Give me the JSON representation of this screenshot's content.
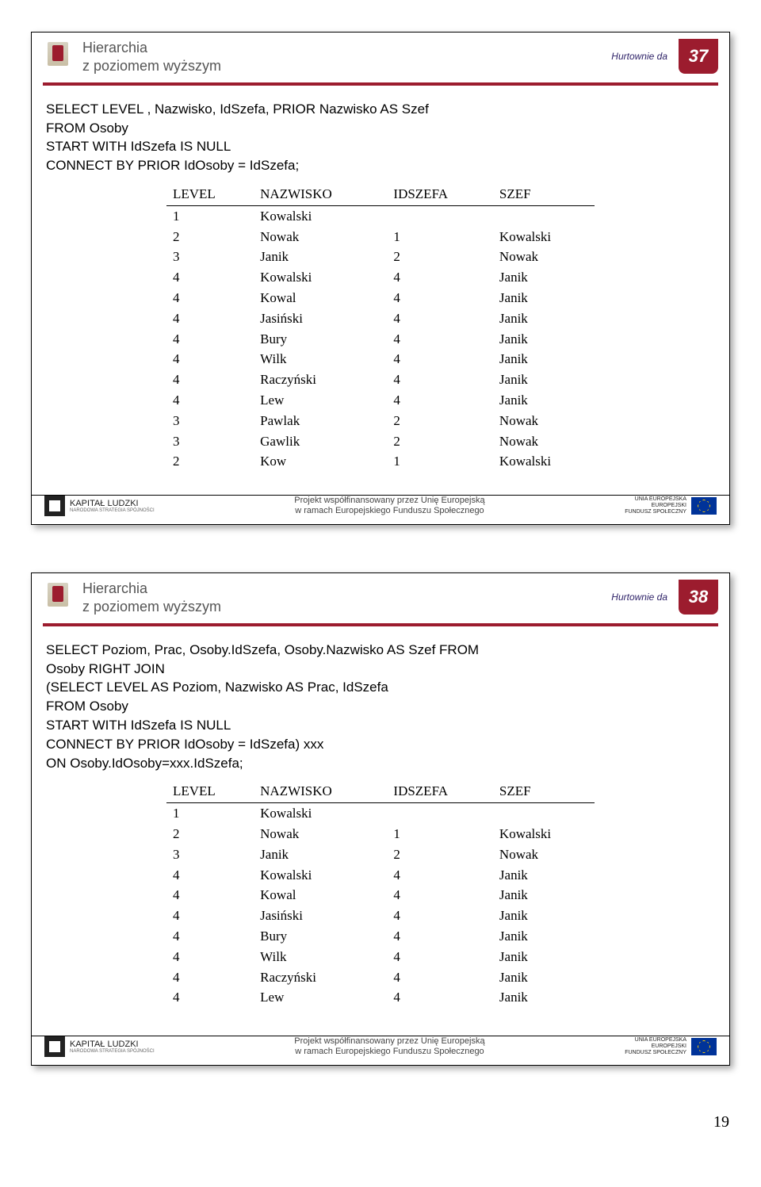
{
  "common": {
    "title1": "Hierarchia",
    "title2": "z poziomem wyższym",
    "tag": "Hurtownie da",
    "foot1": "Projekt współfinansowany przez Unię Europejską",
    "foot2": "w ramach Europejskiego Funduszu Społecznego",
    "kl_main": "KAPITAŁ LUDZKI",
    "kl_sub": "NARODOWA STRATEGIA SPÓJNOŚCI",
    "eu1": "UNIA EUROPEJSKA",
    "eu2": "EUROPEJSKI",
    "eu3": "FUNDUSZ SPOŁECZNY"
  },
  "slide37": {
    "page": "37",
    "sql": "SELECT LEVEL , Nazwisko, IdSzefa, PRIOR Nazwisko AS Szef\nFROM Osoby\nSTART WITH IdSzefa IS NULL\nCONNECT BY PRIOR IdOsoby =  IdSzefa;",
    "headers": [
      "LEVEL",
      "NAZWISKO",
      "IDSZEFA",
      "SZEF"
    ],
    "rows": [
      [
        "1",
        "Kowalski",
        "",
        ""
      ],
      [
        "2",
        "Nowak",
        "1",
        "Kowalski"
      ],
      [
        "3",
        "Janik",
        "2",
        "Nowak"
      ],
      [
        "4",
        "Kowalski",
        "4",
        "Janik"
      ],
      [
        "4",
        "Kowal",
        "4",
        "Janik"
      ],
      [
        "4",
        "Jasiński",
        "4",
        "Janik"
      ],
      [
        "4",
        "Bury",
        "4",
        "Janik"
      ],
      [
        "4",
        "Wilk",
        "4",
        "Janik"
      ],
      [
        "4",
        "Raczyński",
        "4",
        "Janik"
      ],
      [
        "4",
        "Lew",
        "4",
        "Janik"
      ],
      [
        "3",
        "Pawlak",
        "2",
        "Nowak"
      ],
      [
        "3",
        "Gawlik",
        "2",
        "Nowak"
      ],
      [
        "2",
        "Kow",
        "1",
        "Kowalski"
      ]
    ]
  },
  "slide38": {
    "page": "38",
    "sql": "SELECT Poziom, Prac, Osoby.IdSzefa, Osoby.Nazwisko AS Szef FROM\nOsoby RIGHT JOIN\n(SELECT LEVEL AS Poziom, Nazwisko AS Prac, IdSzefa\nFROM Osoby\nSTART WITH IdSzefa IS NULL\nCONNECT BY PRIOR IdOsoby =  IdSzefa) xxx\nON Osoby.IdOsoby=xxx.IdSzefa;",
    "headers": [
      "LEVEL",
      "NAZWISKO",
      "IDSZEFA",
      "SZEF"
    ],
    "rows": [
      [
        "1",
        "Kowalski",
        "",
        ""
      ],
      [
        "2",
        "Nowak",
        "1",
        "Kowalski"
      ],
      [
        "3",
        "Janik",
        "2",
        "Nowak"
      ],
      [
        "4",
        "Kowalski",
        "4",
        "Janik"
      ],
      [
        "4",
        "Kowal",
        "4",
        "Janik"
      ],
      [
        "4",
        "Jasiński",
        "4",
        "Janik"
      ],
      [
        "4",
        "Bury",
        "4",
        "Janik"
      ],
      [
        "4",
        "Wilk",
        "4",
        "Janik"
      ],
      [
        "4",
        "Raczyński",
        "4",
        "Janik"
      ],
      [
        "4",
        "Lew",
        "4",
        "Janik"
      ]
    ]
  },
  "pagefoot": "19"
}
